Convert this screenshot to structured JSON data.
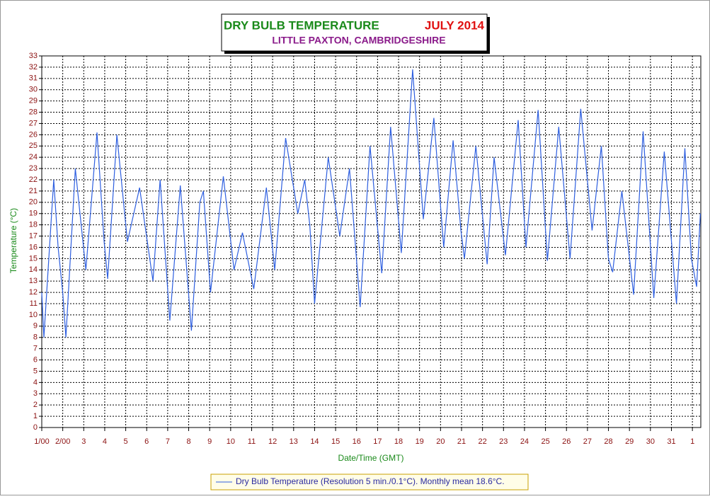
{
  "chart_data": {
    "type": "line",
    "title": "DRY BULB TEMPERATURE",
    "title_period": "JULY 2014",
    "subtitle": "LITTLE PAXTON, CAMBRIDGESHIRE",
    "x_label": "Date/Time (GMT)",
    "y_label": "Temperature (°C)",
    "xlim": [
      1,
      32.4
    ],
    "ylim": [
      0,
      33
    ],
    "xticks": [
      {
        "value": 1,
        "label": "1/00"
      },
      {
        "value": 2,
        "label": "2/00"
      },
      3,
      4,
      5,
      6,
      7,
      8,
      9,
      10,
      11,
      12,
      13,
      14,
      15,
      16,
      17,
      18,
      19,
      20,
      21,
      22,
      23,
      24,
      25,
      26,
      27,
      28,
      29,
      30,
      31,
      {
        "value": 32,
        "label": "1"
      }
    ],
    "yticks": [
      0,
      1,
      2,
      3,
      4,
      5,
      6,
      7,
      8,
      9,
      10,
      11,
      12,
      13,
      14,
      15,
      16,
      17,
      18,
      19,
      20,
      21,
      22,
      23,
      24,
      25,
      26,
      27,
      28,
      29,
      30,
      31,
      32,
      33
    ],
    "grid": true,
    "x": [
      1.0,
      1.1,
      1.57,
      1.78,
      2.0,
      2.15,
      2.6,
      2.82,
      3.1,
      3.63,
      3.97,
      4.14,
      4.58,
      5.08,
      5.66,
      6.3,
      6.64,
      7.1,
      7.6,
      8.13,
      8.53,
      8.7,
      9.04,
      9.65,
      10.16,
      10.56,
      11.1,
      11.7,
      12.1,
      12.62,
      13.2,
      13.53,
      13.77,
      14.0,
      14.65,
      15.2,
      15.66,
      16.17,
      16.64,
      17.2,
      17.62,
      18.13,
      18.67,
      19.18,
      19.68,
      20.15,
      20.6,
      20.97,
      21.14,
      21.68,
      22.22,
      22.55,
      23.09,
      23.7,
      24.07,
      24.65,
      25.09,
      25.63,
      26.17,
      26.68,
      27.22,
      27.66,
      28.0,
      28.2,
      28.64,
      29.2,
      29.65,
      30.16,
      30.66,
      31.24,
      31.64,
      31.95,
      32.2,
      32.38
    ],
    "series": [
      {
        "name": "Dry Bulb Temperature (Resolution 5 min./0.1°C). Monthly mean 18.6°C.",
        "color": "#2e5fe0",
        "values": [
          12,
          8,
          22,
          16,
          12,
          8,
          23,
          19,
          14,
          26.2,
          16.5,
          13.2,
          26,
          16.5,
          21.3,
          13,
          22,
          9.5,
          21.5,
          8.6,
          20,
          21,
          12,
          22.3,
          14,
          17.3,
          12.3,
          21.3,
          14,
          25.7,
          19,
          22,
          18,
          11,
          24,
          17,
          23,
          10.7,
          25,
          13.7,
          26.7,
          15.5,
          31.8,
          18.5,
          27.5,
          16,
          25.5,
          17.5,
          15,
          25,
          14.5,
          24,
          15.3,
          27.3,
          16,
          28.2,
          14.8,
          26.7,
          15,
          28.3,
          17.5,
          25,
          15,
          13.8,
          21,
          11.8,
          26.3,
          11.5,
          24.5,
          11,
          24.8,
          15,
          12.5,
          19
        ]
      }
    ]
  }
}
